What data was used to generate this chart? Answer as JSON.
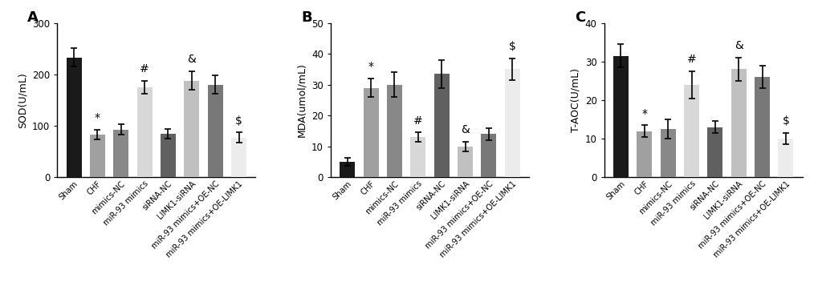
{
  "categories": [
    "Sham",
    "CHF",
    "mimics-NC",
    "miR-93 mimics",
    "siRNA-NC",
    "LIMK1-siRNA",
    "miR-93 mimics+OE-NC",
    "miR-93 mimics+OE-LIMK1"
  ],
  "SOD": {
    "values": [
      233,
      83,
      93,
      175,
      85,
      188,
      180,
      77
    ],
    "errors": [
      18,
      10,
      10,
      12,
      9,
      18,
      18,
      10
    ],
    "ylabel": "SOD(U/mL)",
    "ylim": [
      0,
      300
    ],
    "yticks": [
      0,
      100,
      200,
      300
    ],
    "label": "A",
    "sig_labels": [
      "",
      "*",
      "",
      "#",
      "",
      "&",
      "",
      "$"
    ]
  },
  "MDA": {
    "values": [
      5,
      29,
      30,
      13,
      33.5,
      10,
      14,
      35
    ],
    "errors": [
      1.2,
      3.0,
      4.0,
      1.5,
      4.5,
      1.5,
      2.0,
      3.5
    ],
    "ylabel": "MDA(umol/mL)",
    "ylim": [
      0,
      50
    ],
    "yticks": [
      0,
      10,
      20,
      30,
      40,
      50
    ],
    "label": "B",
    "sig_labels": [
      "",
      "*",
      "",
      "#",
      "",
      "&",
      "",
      "$"
    ]
  },
  "TAOC": {
    "values": [
      31.5,
      12,
      12.5,
      24,
      13,
      28,
      26,
      10
    ],
    "errors": [
      3.0,
      1.5,
      2.5,
      3.5,
      1.5,
      3.0,
      3.0,
      1.5
    ],
    "ylabel": "T-AOC(U/mL)",
    "ylim": [
      0,
      40
    ],
    "yticks": [
      0,
      10,
      20,
      30,
      40
    ],
    "label": "C",
    "sig_labels": [
      "",
      "*",
      "",
      "#",
      "",
      "&",
      "",
      "$"
    ]
  },
  "bar_colors": [
    "#1a1a1a",
    "#a0a0a0",
    "#888888",
    "#d8d8d8",
    "#606060",
    "#c0c0c0",
    "#787878",
    "#ececec"
  ],
  "sig_fontsize": 10,
  "panel_label_fontsize": 13
}
